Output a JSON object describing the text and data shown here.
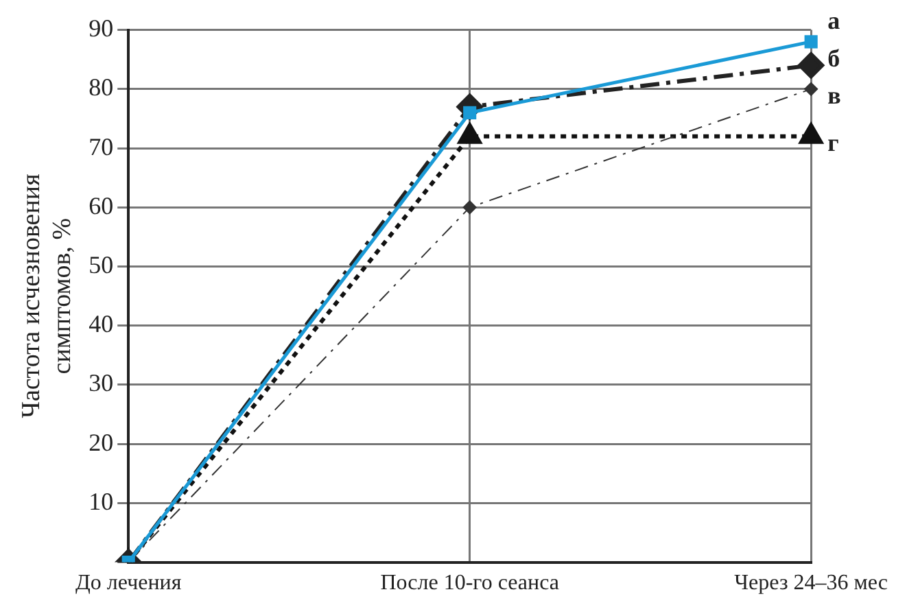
{
  "chart_data": {
    "type": "line",
    "ylabel": "Частота исчезновения симптомов, %",
    "categories": [
      "До лечения",
      "После 10-го сеанса",
      "Через 24–36 мес"
    ],
    "ylim": [
      0,
      90
    ],
    "yticks": [
      {
        "value": 0,
        "label": null
      },
      10,
      20,
      30,
      40,
      50,
      60,
      70,
      80,
      90
    ],
    "grid": true,
    "legend": false,
    "series": [
      {
        "name": "а",
        "color": "#1a9ad6",
        "values": [
          0,
          76,
          88
        ],
        "line_style": "solid",
        "marker": "square"
      },
      {
        "name": "б",
        "color": "#222222",
        "values": [
          0,
          77,
          84
        ],
        "line_style": "dashed",
        "marker": "diamond"
      },
      {
        "name": "в",
        "color": "#333333",
        "values": [
          0,
          60,
          80
        ],
        "line_style": "dashdot",
        "marker": "diamond"
      },
      {
        "name": "г",
        "color": "#111111",
        "values": [
          0,
          72,
          72
        ],
        "line_style": "dotted",
        "marker": "triangle"
      }
    ]
  }
}
